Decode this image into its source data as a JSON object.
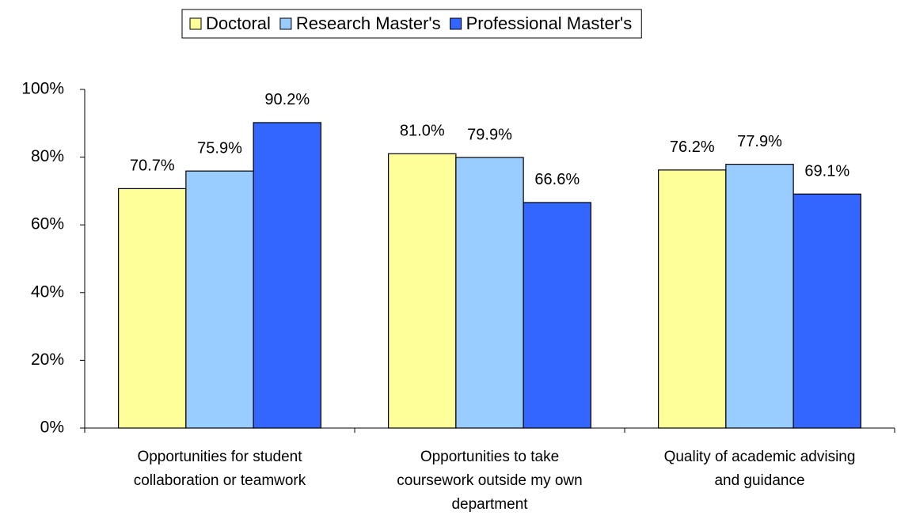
{
  "chart_data": {
    "type": "bar",
    "categories": [
      "Opportunities for student collaboration or teamwork",
      "Opportunities to take coursework outside my own department",
      "Quality of academic advising and guidance"
    ],
    "series": [
      {
        "name": "Doctoral",
        "color": "#FFFF99",
        "values": [
          70.7,
          81.0,
          76.2
        ],
        "value_labels": [
          "70.7%",
          "81.0%",
          "76.2%"
        ]
      },
      {
        "name": "Research Master's",
        "color": "#99CCFF",
        "values": [
          75.9,
          79.9,
          77.9
        ],
        "value_labels": [
          "75.9%",
          "79.9%",
          "77.9%"
        ]
      },
      {
        "name": "Professional Master's",
        "color": "#3366FF",
        "values": [
          90.2,
          66.6,
          69.1
        ],
        "value_labels": [
          "90.2%",
          "66.6%",
          "69.1%"
        ]
      }
    ],
    "ylim": [
      0,
      100
    ],
    "yticks": [
      {
        "value": 0,
        "label": "0%"
      },
      {
        "value": 20,
        "label": "20%"
      },
      {
        "value": 40,
        "label": "40%"
      },
      {
        "value": 60,
        "label": "60%"
      },
      {
        "value": 80,
        "label": "80%"
      },
      {
        "value": 100,
        "label": "100%"
      }
    ],
    "legend": "top"
  }
}
